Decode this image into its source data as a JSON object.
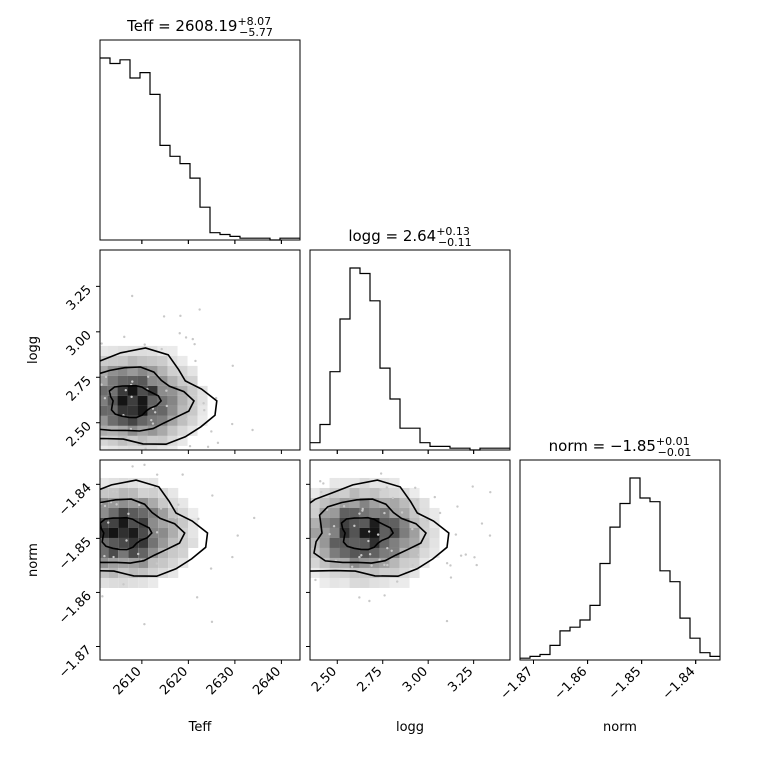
{
  "chart_data": {
    "type": "corner",
    "parameters": [
      "Teff",
      "logg",
      "norm"
    ],
    "titles": [
      {
        "param": "Teff",
        "prefix": "Teff = ",
        "value": "2608.19",
        "upper": "+8.07",
        "lower": "−5.77"
      },
      {
        "param": "logg",
        "prefix": "logg = ",
        "value": "2.64",
        "upper": "+0.13",
        "lower": "−0.11"
      },
      {
        "param": "norm",
        "prefix": "norm = ",
        "value": "−1.85",
        "upper": "+0.01",
        "lower": "−0.01"
      }
    ],
    "axes": {
      "Teff": {
        "range": [
          2601,
          2644
        ],
        "ticks": [
          2610,
          2620,
          2630,
          2640
        ],
        "tick_labels": [
          "2610",
          "2620",
          "2630",
          "2640"
        ],
        "label": "Teff"
      },
      "logg": {
        "range": [
          2.35,
          3.45
        ],
        "ticks": [
          2.5,
          2.75,
          3.0,
          3.25
        ],
        "tick_labels": [
          "2.50",
          "2.75",
          "3.00",
          "3.25"
        ],
        "label": "logg"
      },
      "norm": {
        "range": [
          -1.8725,
          -1.8355
        ],
        "ticks": [
          -1.87,
          -1.86,
          -1.85,
          -1.84
        ],
        "tick_labels": [
          "−1.87",
          "−1.86",
          "−1.85",
          "−1.84"
        ],
        "label": "norm"
      }
    },
    "histograms": {
      "Teff": {
        "bin_start": 2601,
        "bin_width": 2.15,
        "counts": [
          100,
          97,
          99,
          89,
          92,
          80,
          52,
          46,
          42,
          34,
          18,
          4,
          3,
          2,
          1,
          1,
          1,
          0,
          1,
          1
        ]
      },
      "logg": {
        "bin_start": 2.35,
        "bin_width": 0.055,
        "counts": [
          4,
          14,
          43,
          72,
          100,
          97,
          82,
          45,
          28,
          12,
          12,
          4,
          2,
          2,
          1,
          1,
          0,
          1,
          1,
          1
        ]
      },
      "norm": {
        "bin_start": -1.8725,
        "bin_width": 0.00185,
        "counts": [
          1,
          2,
          3,
          8,
          16,
          18,
          22,
          30,
          53,
          73,
          86,
          100,
          89,
          87,
          49,
          43,
          23,
          12,
          4,
          2
        ]
      }
    },
    "contour_centers": {
      "Teff_logg": [
        2608,
        2.62
      ],
      "Teff_norm": [
        2606,
        -1.849
      ],
      "logg_norm": [
        2.65,
        -1.849
      ]
    }
  }
}
